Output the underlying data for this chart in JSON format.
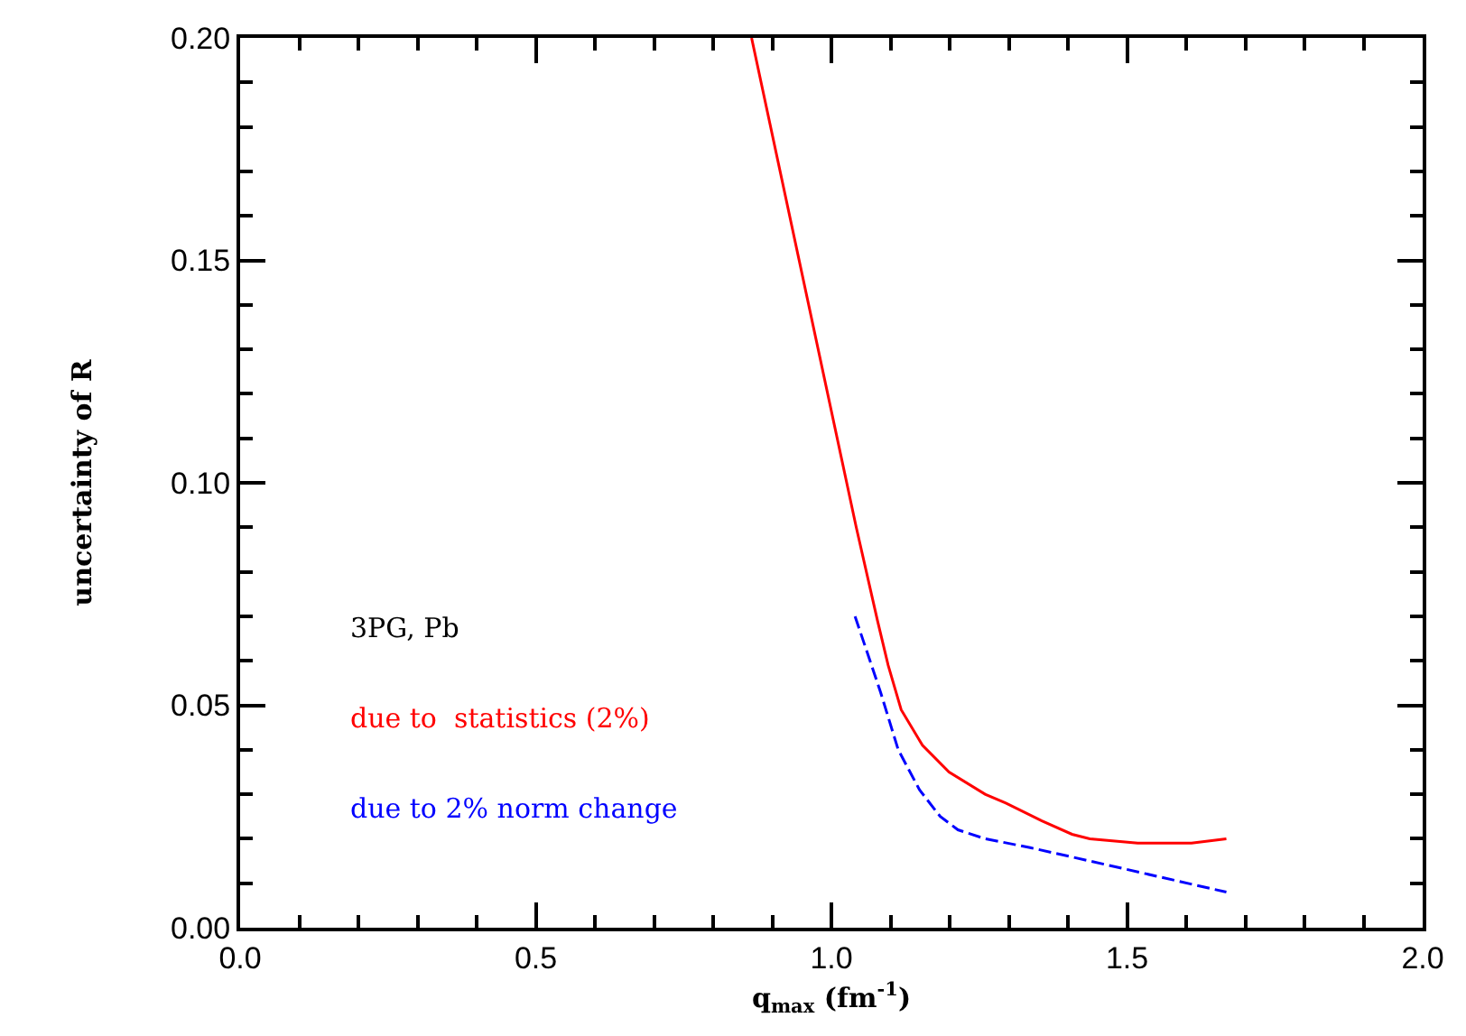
{
  "chart_data": {
    "type": "line",
    "xlabel": "q$_{max}$ (fm$^{-1}$)",
    "ylabel": "uncertainty of R",
    "annotations": [
      "3PG, Pb"
    ],
    "series": [
      {
        "name": "due to  statistics (2%)",
        "color": "#ff0000",
        "line_style": "solid",
        "x": [
          0.865,
          1.042,
          1.078,
          1.096,
          1.118,
          1.154,
          1.199,
          1.26,
          1.295,
          1.356,
          1.407,
          1.437,
          1.518,
          1.609,
          1.668
        ],
        "values": [
          0.2,
          0.09,
          0.069,
          0.059,
          0.049,
          0.041,
          0.035,
          0.03,
          0.028,
          0.024,
          0.021,
          0.02,
          0.019,
          0.019,
          0.02
        ]
      },
      {
        "name": "due to 2% norm change",
        "color": "#0000ff",
        "line_style": "dashed",
        "x": [
          1.04,
          1.083,
          1.113,
          1.149,
          1.184,
          1.214,
          1.26,
          1.336,
          1.437,
          1.668
        ],
        "values": [
          0.07,
          0.053,
          0.04,
          0.031,
          0.025,
          0.022,
          0.02,
          0.018,
          0.015,
          0.008
        ]
      }
    ],
    "xlim": [
      0,
      2
    ],
    "xticks": [
      {
        "value": 0,
        "label": "0.0"
      },
      {
        "value": 0.5,
        "label": "0.5"
      },
      {
        "value": 1,
        "label": "1.0"
      },
      {
        "value": 1.5,
        "label": "1.5"
      },
      {
        "value": 2,
        "label": "2.0"
      }
    ],
    "ylim": [
      0,
      0.2
    ],
    "yticks": [
      {
        "value": 0,
        "label": "0.00"
      },
      {
        "value": 0.05,
        "label": "0.05"
      },
      {
        "value": 0.1,
        "label": "0.10"
      },
      {
        "value": 0.15,
        "label": "0.15"
      },
      {
        "value": 0.2,
        "label": "0.20"
      }
    ],
    "grid": false,
    "legend": false,
    "marker": "none"
  }
}
